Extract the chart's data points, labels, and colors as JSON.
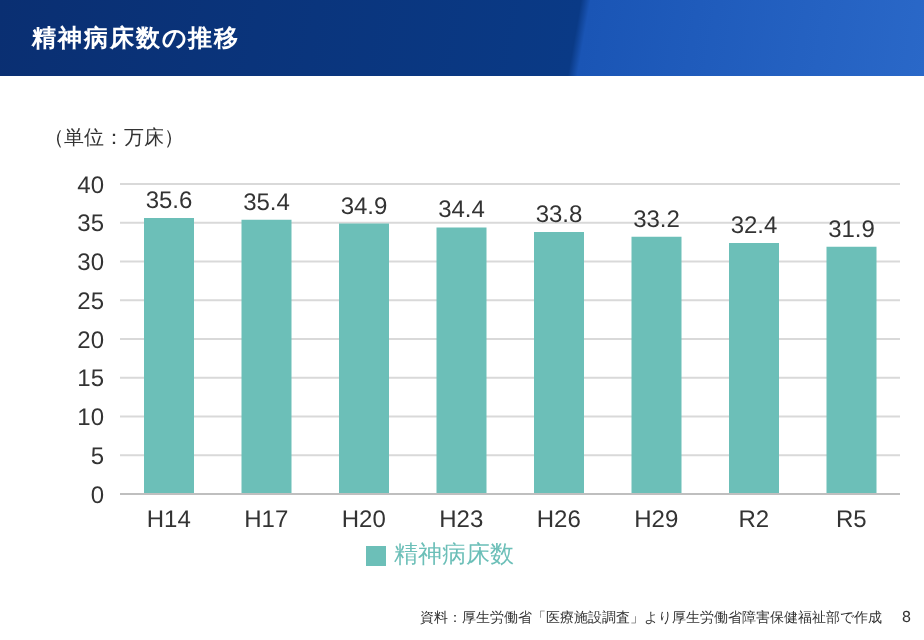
{
  "chart_data": {
    "type": "bar",
    "title": "精神病床数の推移",
    "ylabel": "（単位：万床）",
    "categories": [
      "H14",
      "H17",
      "H20",
      "H23",
      "H26",
      "H29",
      "R2",
      "R5"
    ],
    "series": [
      {
        "name": "精神病床数",
        "color": "#6cbfb8",
        "values": [
          35.6,
          35.4,
          34.9,
          34.4,
          33.8,
          33.2,
          32.4,
          31.9
        ]
      }
    ],
    "ylim": [
      0,
      40
    ],
    "yticks": [
      0,
      5,
      10,
      15,
      20,
      25,
      30,
      35,
      40
    ],
    "grid": "y",
    "legend": "bottom",
    "data_labels": true,
    "annotations": [
      "資料：厚生労働省「医療施設調査」より厚生労働省障害保健福祉部で作成",
      "8"
    ]
  }
}
